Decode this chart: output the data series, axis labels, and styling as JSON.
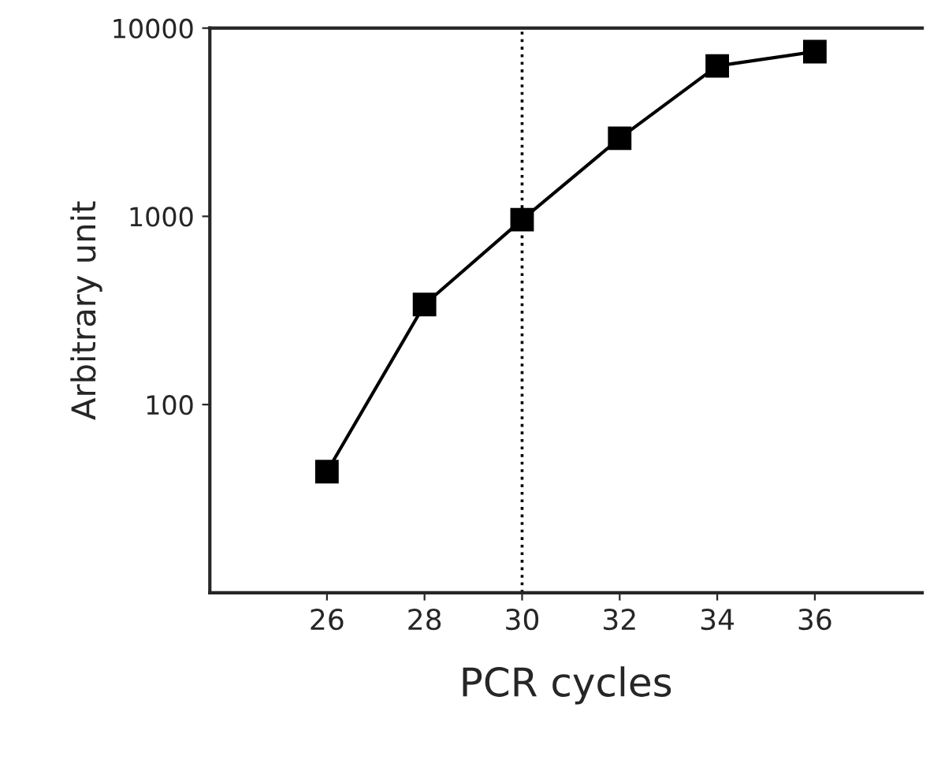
{
  "chart_data": {
    "type": "line",
    "xlabel": "PCR cycles",
    "ylabel": "Arbitrary unit",
    "x": [
      26,
      28,
      30,
      32,
      34,
      36
    ],
    "values": [
      44,
      340,
      960,
      2600,
      6300,
      7500
    ],
    "color": "#000000",
    "marker": "square",
    "line_style": "solid",
    "log": "y",
    "xlim": [
      23.6,
      38.2
    ],
    "xticks": [
      26,
      28,
      30,
      32,
      34,
      36
    ],
    "ylim": [
      10,
      10000
    ],
    "yticks": [
      100,
      1000,
      10000
    ],
    "ref_lines": [
      {
        "axis": "x",
        "value": 30,
        "color": "#000000",
        "line_style": "dotted"
      }
    ],
    "grid": false
  }
}
